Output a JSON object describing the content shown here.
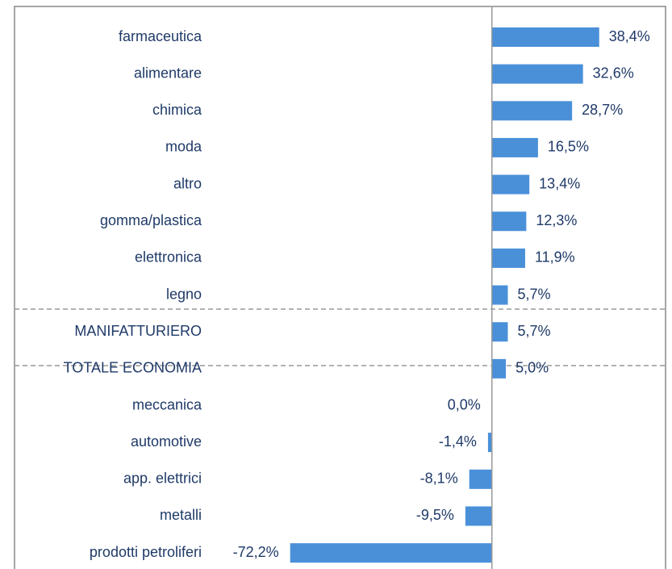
{
  "chart_data": {
    "type": "barh",
    "categories": [
      "farmaceutica",
      "alimentare",
      "chimica",
      "moda",
      "altro",
      "gomma/plastica",
      "elettronica",
      "legno",
      "MANIFATTURIERO",
      "TOTALE ECONOMIA",
      "meccanica",
      "automotive",
      "app. elettrici",
      "metalli",
      "prodotti petroliferi"
    ],
    "values": [
      38.4,
      32.6,
      28.7,
      16.5,
      13.4,
      12.3,
      11.9,
      5.7,
      5.7,
      5.0,
      0.0,
      -1.4,
      -8.1,
      -9.5,
      -72.2
    ],
    "value_labels": [
      "38,4%",
      "32,6%",
      "28,7%",
      "16,5%",
      "13,4%",
      "12,3%",
      "11,9%",
      "5,7%",
      "5,7%",
      "5,0%",
      "0,0%",
      "-1,4%",
      "-8,1%",
      "-9,5%",
      "-72,2%"
    ],
    "color": "#4a90d9",
    "xlim": [
      -75,
      62
    ]
  }
}
